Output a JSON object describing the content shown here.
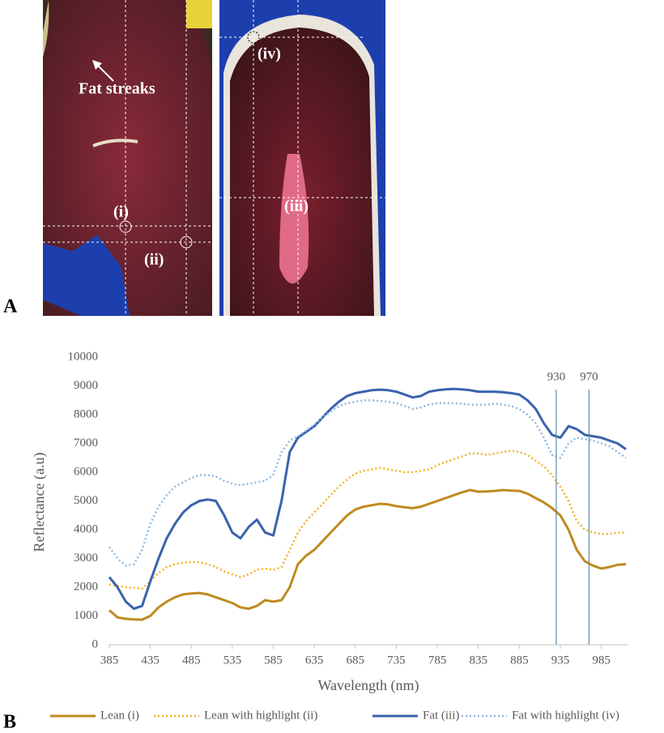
{
  "panel_a": {
    "label": "A",
    "annotations": [
      "Fat streaks",
      "(i)",
      "(ii)",
      "(iii)",
      "(iv)"
    ]
  },
  "panel_b": {
    "label": "B"
  },
  "chart_data": {
    "type": "line",
    "x_label": "Wavelength (nm)",
    "y_label": "Reflectance (a.u)",
    "x": [
      385,
      395,
      405,
      415,
      425,
      435,
      445,
      455,
      465,
      475,
      485,
      495,
      505,
      515,
      525,
      535,
      545,
      555,
      565,
      575,
      585,
      595,
      605,
      615,
      625,
      635,
      645,
      655,
      665,
      675,
      685,
      695,
      705,
      715,
      725,
      735,
      745,
      755,
      765,
      775,
      785,
      795,
      805,
      815,
      825,
      835,
      845,
      855,
      865,
      875,
      885,
      895,
      905,
      915,
      925,
      935,
      945,
      955,
      965,
      975,
      985,
      995,
      1005,
      1015
    ],
    "series": [
      {
        "name": "Lean (i)",
        "color": "#bf8a1f",
        "style": "solid",
        "values": [
          1200,
          950,
          900,
          880,
          870,
          1000,
          1300,
          1500,
          1650,
          1750,
          1780,
          1800,
          1750,
          1650,
          1550,
          1450,
          1300,
          1250,
          1350,
          1550,
          1500,
          1550,
          2000,
          2800,
          3100,
          3300,
          3600,
          3900,
          4200,
          4500,
          4700,
          4800,
          4850,
          4900,
          4880,
          4820,
          4780,
          4750,
          4800,
          4900,
          5000,
          5100,
          5200,
          5300,
          5380,
          5320,
          5330,
          5350,
          5380,
          5360,
          5350,
          5250,
          5100,
          4950,
          4750,
          4500,
          4000,
          3300,
          2900,
          2750,
          2650,
          2700,
          2780,
          2800
        ]
      },
      {
        "name": "Lean with highlight (ii)",
        "color": "#f0b323",
        "style": "dotted",
        "values": [
          2100,
          2050,
          2000,
          1980,
          1950,
          2200,
          2500,
          2700,
          2800,
          2850,
          2880,
          2870,
          2800,
          2700,
          2550,
          2450,
          2350,
          2450,
          2600,
          2650,
          2600,
          2700,
          3300,
          3900,
          4300,
          4600,
          4900,
          5200,
          5500,
          5750,
          5950,
          6050,
          6100,
          6150,
          6100,
          6050,
          6000,
          6000,
          6050,
          6100,
          6250,
          6350,
          6450,
          6550,
          6650,
          6650,
          6600,
          6650,
          6700,
          6750,
          6700,
          6600,
          6400,
          6200,
          5900,
          5500,
          5000,
          4300,
          4000,
          3900,
          3850,
          3850,
          3900,
          3900
        ]
      },
      {
        "name": "Fat (iii)",
        "color": "#3a63ad",
        "style": "solid",
        "values": [
          2350,
          2000,
          1500,
          1250,
          1350,
          2200,
          3000,
          3700,
          4200,
          4600,
          4850,
          5000,
          5050,
          5000,
          4500,
          3900,
          3700,
          4100,
          4350,
          3900,
          3800,
          5000,
          6700,
          7200,
          7400,
          7600,
          7900,
          8200,
          8450,
          8650,
          8750,
          8800,
          8850,
          8870,
          8850,
          8800,
          8700,
          8600,
          8650,
          8800,
          8850,
          8880,
          8900,
          8880,
          8850,
          8800,
          8800,
          8800,
          8780,
          8750,
          8700,
          8500,
          8200,
          7700,
          7300,
          7200,
          7600,
          7500,
          7300,
          7250,
          7200,
          7100,
          7000,
          6800
        ]
      },
      {
        "name": "Fat with highlight (iv)",
        "color": "#8fb8df",
        "style": "dotted",
        "values": [
          3400,
          3000,
          2750,
          2800,
          3300,
          4200,
          4800,
          5200,
          5500,
          5650,
          5800,
          5900,
          5900,
          5850,
          5700,
          5600,
          5550,
          5600,
          5650,
          5700,
          5900,
          6700,
          7100,
          7250,
          7450,
          7650,
          7900,
          8100,
          8300,
          8400,
          8450,
          8500,
          8500,
          8480,
          8450,
          8400,
          8300,
          8200,
          8250,
          8350,
          8400,
          8400,
          8400,
          8380,
          8350,
          8350,
          8350,
          8380,
          8350,
          8300,
          8200,
          8000,
          7700,
          7200,
          6600,
          6500,
          7000,
          7200,
          7150,
          7100,
          7000,
          6900,
          6700,
          6500
        ]
      }
    ],
    "xlim": [
      385,
      1017
    ],
    "ylim": [
      0,
      10000
    ],
    "xticks": [
      385,
      435,
      485,
      535,
      585,
      635,
      685,
      735,
      785,
      835,
      885,
      935,
      985
    ],
    "yticks": [
      0,
      1000,
      2000,
      3000,
      4000,
      5000,
      6000,
      7000,
      8000,
      9000,
      10000
    ],
    "vlines": [
      930,
      970
    ],
    "vline_color": "#5b8fb0",
    "grid": false,
    "legend": "bottom"
  }
}
